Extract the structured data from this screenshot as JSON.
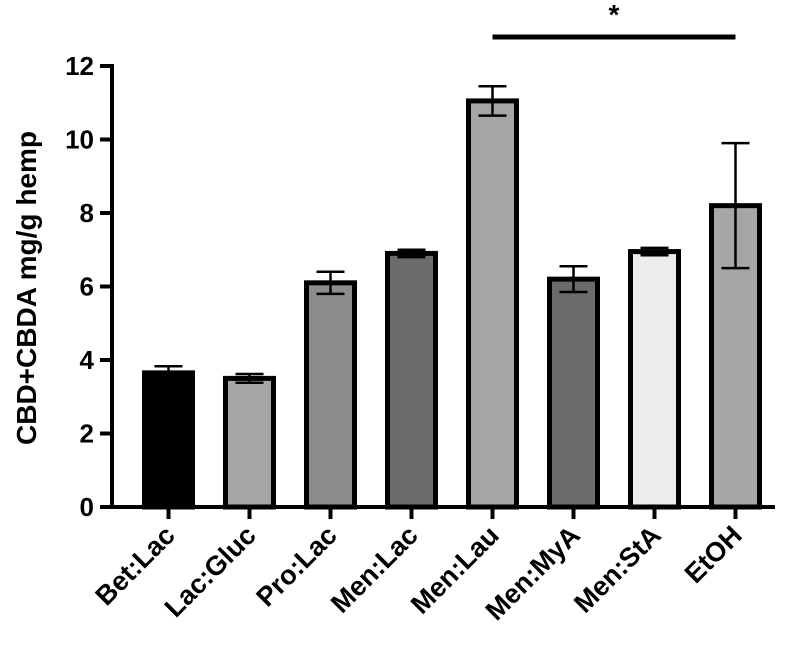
{
  "chart_data": {
    "type": "bar",
    "title": "",
    "xlabel": "",
    "ylabel": "CBD+CBDA mg/g hemp",
    "ylim": [
      0,
      12
    ],
    "yticks": [
      0,
      2,
      4,
      6,
      8,
      10,
      12
    ],
    "grid": false,
    "categories": [
      "Bet:Lac",
      "Lac:Gluc",
      "Pro:Lac",
      "Men:Lac",
      "Men:Lau",
      "Men:MyA",
      "Men:StA",
      "EtOH"
    ],
    "values": [
      3.65,
      3.5,
      6.1,
      6.9,
      11.05,
      6.2,
      6.95,
      8.2
    ],
    "errors": [
      0.18,
      0.12,
      0.3,
      0.1,
      0.4,
      0.35,
      0.1,
      1.7
    ],
    "bar_colors": [
      "#000000",
      "#a6a6a8",
      "#8c8c8e",
      "#6b6b6d",
      "#a6a6a8",
      "#6b6b6d",
      "#ececec",
      "#a6a6a8"
    ],
    "significance": {
      "from": "Men:Lau",
      "to": "EtOH",
      "label": "*"
    }
  }
}
